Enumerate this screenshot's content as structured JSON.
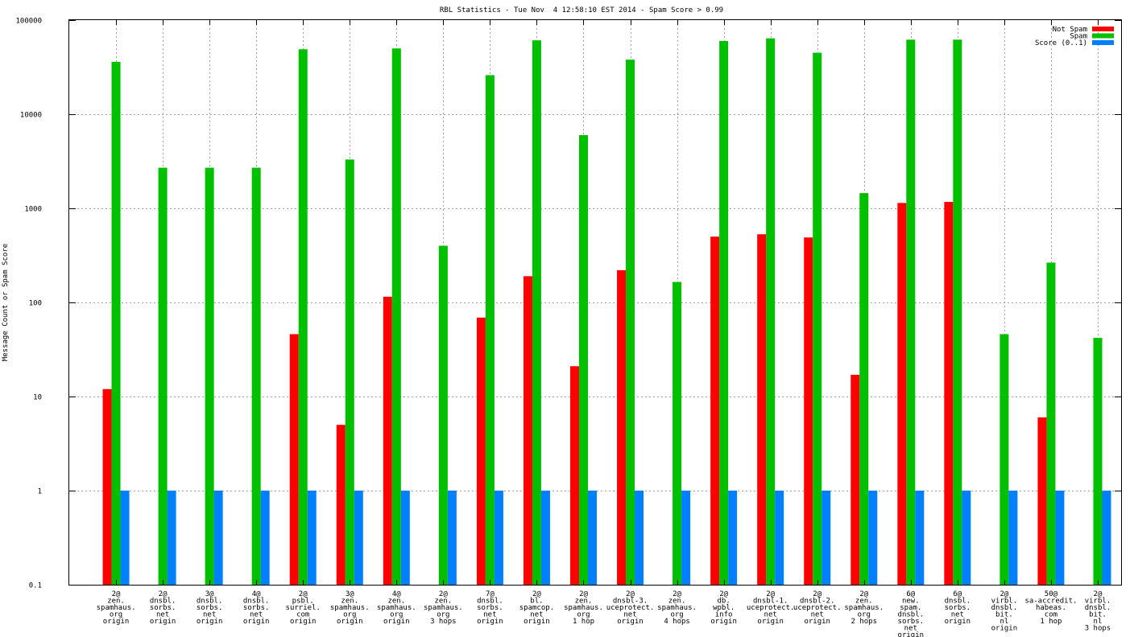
{
  "chart_data": {
    "type": "bar",
    "title": "RBL Statistics - Tue Nov  4 12:58:10 EST 2014 - Spam Score > 0.99",
    "xlabel": "",
    "ylabel": "Message Count or Spam Score",
    "yscale": "log",
    "ylim": [
      0.1,
      100000
    ],
    "y_ticks": [
      {
        "value": 0.1,
        "label": "0.1"
      },
      {
        "value": 1,
        "label": "1"
      },
      {
        "value": 10,
        "label": "10"
      },
      {
        "value": 100,
        "label": "100"
      },
      {
        "value": 1000,
        "label": "1000"
      },
      {
        "value": 10000,
        "label": "10000"
      },
      {
        "value": 100000,
        "label": "100000"
      }
    ],
    "grid": true,
    "legend_position": "top-right",
    "categories": [
      [
        "2@",
        "zen.",
        "spamhaus.",
        "org",
        "origin"
      ],
      [
        "2@",
        "dnsbl.",
        "sorbs.",
        "net",
        "origin"
      ],
      [
        "3@",
        "dnsbl.",
        "sorbs.",
        "net",
        "origin"
      ],
      [
        "4@",
        "dnsbl.",
        "sorbs.",
        "net",
        "origin"
      ],
      [
        "2@",
        "psbl.",
        "surriel.",
        "com",
        "origin"
      ],
      [
        "3@",
        "zen.",
        "spamhaus.",
        "org",
        "origin"
      ],
      [
        "4@",
        "zen.",
        "spamhaus.",
        "org",
        "origin"
      ],
      [
        "2@",
        "zen.",
        "spamhaus.",
        "org",
        "3 hops"
      ],
      [
        "7@",
        "dnsbl.",
        "sorbs.",
        "net",
        "origin"
      ],
      [
        "2@",
        "bl.",
        "spamcop.",
        "net",
        "origin"
      ],
      [
        "2@",
        "zen.",
        "spamhaus.",
        "org",
        "1 hop"
      ],
      [
        "2@",
        "dnsbl-3.",
        "uceprotect.",
        "net",
        "origin"
      ],
      [
        "2@",
        "zen.",
        "spamhaus.",
        "org",
        "4 hops"
      ],
      [
        "2@",
        "db.",
        "wpbl.",
        "info",
        "origin"
      ],
      [
        "2@",
        "dnsbl-1.",
        "uceprotect.",
        "net",
        "origin"
      ],
      [
        "2@",
        "dnsbl-2.",
        "uceprotect.",
        "net",
        "origin"
      ],
      [
        "2@",
        "zen.",
        "spamhaus.",
        "org",
        "2 hops"
      ],
      [
        "6@",
        "new.",
        "spam.",
        "dnsbl.",
        "sorbs.",
        "net",
        "origin"
      ],
      [
        "6@",
        "dnsbl.",
        "sorbs.",
        "net",
        "origin"
      ],
      [
        "2@",
        "virbl.",
        "dnsbl.",
        "bit.",
        "nl",
        "origin"
      ],
      [
        "50@",
        "sa-accredit.",
        "habeas.",
        "com",
        "1 hop"
      ],
      [
        "2@",
        "virbl.",
        "dnsbl.",
        "bit.",
        "nl",
        "3 hops"
      ]
    ],
    "series": [
      {
        "name": "Not Spam",
        "color": "#ff0000",
        "values": [
          12,
          null,
          null,
          null,
          46,
          5,
          115,
          null,
          69,
          190,
          21,
          220,
          null,
          500,
          530,
          490,
          17,
          1140,
          1170,
          null,
          6,
          null
        ]
      },
      {
        "name": "Spam",
        "color": "#00c000",
        "values": [
          36000,
          2700,
          2700,
          2700,
          49000,
          3300,
          50000,
          400,
          26000,
          61000,
          6000,
          38000,
          165,
          60000,
          64000,
          45000,
          1450,
          62000,
          62000,
          46,
          265,
          42
        ]
      },
      {
        "name": "Score (0..1)",
        "color": "#0080ff",
        "values": [
          1,
          1,
          1,
          1,
          1,
          1,
          1,
          1,
          1,
          1,
          1,
          1,
          1,
          1,
          1,
          1,
          1,
          1,
          1,
          1,
          1,
          1
        ]
      }
    ]
  }
}
